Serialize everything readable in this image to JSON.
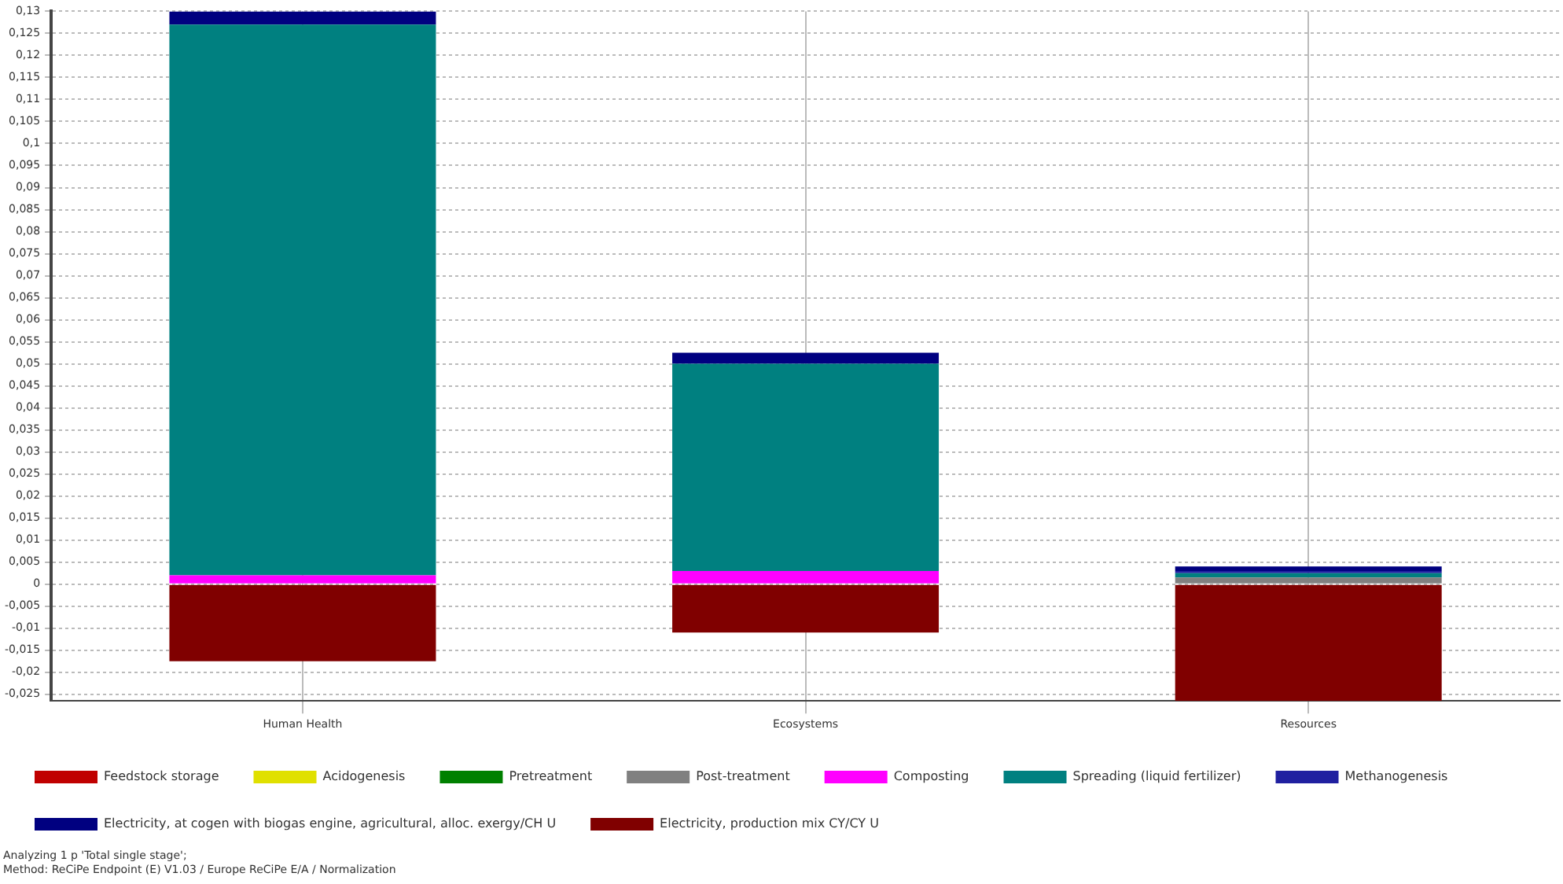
{
  "chart_data": {
    "type": "bar",
    "stacked": true,
    "categories": [
      "Human Health",
      "Ecosystems",
      "Resources"
    ],
    "series": [
      {
        "name": "Feedstock storage",
        "color": "#c00000",
        "values": [
          0,
          0,
          0
        ]
      },
      {
        "name": "Acidogenesis",
        "color": "#e0e000",
        "values": [
          0,
          0,
          0
        ]
      },
      {
        "name": "Pretreatment",
        "color": "#008000",
        "values": [
          0,
          0,
          0
        ]
      },
      {
        "name": "Post-treatment",
        "color": "#808080",
        "values": [
          0,
          0,
          0.0015
        ]
      },
      {
        "name": "Composting",
        "color": "#ff00ff",
        "values": [
          0.002,
          0.003,
          0
        ]
      },
      {
        "name": "Spreading (liquid fertilizer)",
        "color": "#008080",
        "values": [
          0.125,
          0.047,
          0.001
        ]
      },
      {
        "name": "Methanogenesis",
        "color": "#2020a0",
        "values": [
          0,
          0,
          0.0005
        ]
      },
      {
        "name": "Electricity, at cogen with biogas engine, agricultural, alloc. exergy/CH U",
        "color": "#000080",
        "values": [
          0.003,
          0.0025,
          0.001
        ]
      },
      {
        "name": "Electricity, production mix CY/CY U",
        "color": "#800000",
        "values": [
          -0.0175,
          -0.011,
          -0.0265
        ]
      }
    ],
    "ylim": [
      -0.0265,
      0.13
    ],
    "yticks": [
      {
        "value": -0.025,
        "label": "-0,025"
      },
      {
        "value": -0.02,
        "label": "-0,02"
      },
      {
        "value": -0.015,
        "label": "-0,015"
      },
      {
        "value": -0.01,
        "label": "-0,01"
      },
      {
        "value": -0.005,
        "label": "-0,005"
      },
      0,
      {
        "value": 0.005,
        "label": "0,005"
      },
      {
        "value": 0.01,
        "label": "0,01"
      },
      {
        "value": 0.015,
        "label": "0,015"
      },
      {
        "value": 0.02,
        "label": "0,02"
      },
      {
        "value": 0.025,
        "label": "0,025"
      },
      {
        "value": 0.03,
        "label": "0,03"
      },
      {
        "value": 0.035,
        "label": "0,035"
      },
      {
        "value": 0.04,
        "label": "0,04"
      },
      {
        "value": 0.045,
        "label": "0,045"
      },
      {
        "value": 0.05,
        "label": "0,05"
      },
      {
        "value": 0.055,
        "label": "0,055"
      },
      {
        "value": 0.06,
        "label": "0,06"
      },
      {
        "value": 0.065,
        "label": "0,065"
      },
      {
        "value": 0.07,
        "label": "0,07"
      },
      {
        "value": 0.075,
        "label": "0,075"
      },
      {
        "value": 0.08,
        "label": "0,08"
      },
      {
        "value": 0.085,
        "label": "0,085"
      },
      {
        "value": 0.09,
        "label": "0,09"
      },
      {
        "value": 0.095,
        "label": "0,095"
      },
      {
        "value": 0.1,
        "label": "0,1"
      },
      {
        "value": 0.105,
        "label": "0,105"
      },
      {
        "value": 0.11,
        "label": "0,11"
      },
      {
        "value": 0.115,
        "label": "0,115"
      },
      {
        "value": 0.12,
        "label": "0,12"
      },
      {
        "value": 0.125,
        "label": "0,125"
      },
      {
        "value": 0.13,
        "label": "0,13"
      }
    ],
    "grid": true,
    "legend": "bottom left",
    "annotations": [
      "Analyzing 1 p 'Total single stage';",
      "Method: ReCiPe Endpoint (E) V1.03 / Europe ReCiPe E/A / Normalization"
    ]
  }
}
